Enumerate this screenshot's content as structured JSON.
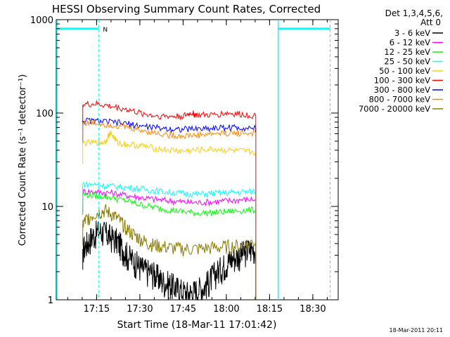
{
  "chart_data": {
    "type": "line",
    "title": "HESSI Observing Summary Count Rates, Corrected",
    "xlabel": "Start Time (18-Mar-11 17:01:42)",
    "ylabel": "Corrected Count Rate (s⁻¹ detector⁻¹)",
    "yscale": "log",
    "ylim": [
      1,
      1000
    ],
    "xlim_minutes": [
      17.0167,
      17.6467
    ],
    "x_ticks": [
      {
        "label": "17:15",
        "value": 17.25
      },
      {
        "label": "17:30",
        "value": 17.5
      },
      {
        "label": "17:45",
        "value": 17.75
      },
      {
        "label": "18:00",
        "value": 18.0
      },
      {
        "label": "18:15",
        "value": 18.25
      },
      {
        "label": "18:30",
        "value": 18.5
      }
    ],
    "y_ticks": [
      {
        "label": "1",
        "value": 1
      },
      {
        "label": "10",
        "value": 10
      },
      {
        "label": "100",
        "value": 100
      },
      {
        "label": "1000",
        "value": 1000
      }
    ],
    "legend": {
      "position": "top-right",
      "header": [
        "Det 1,3,4,5,6,",
        "Att 0"
      ]
    },
    "series": [
      {
        "name": "3 - 6 keV",
        "color": "#000000",
        "x": [
          17.17,
          17.2,
          17.23,
          17.27,
          17.3,
          17.33,
          17.37,
          17.4,
          17.43,
          17.47,
          17.5,
          17.53,
          17.57,
          17.6,
          17.63,
          17.67,
          17.7,
          17.73,
          17.77,
          17.8,
          17.83,
          17.87,
          17.9,
          17.93,
          17.97,
          18.0,
          18.03,
          18.07,
          18.1,
          18.13,
          18.17
        ],
        "y": [
          3.5,
          4.2,
          5,
          5.5,
          5.2,
          4.8,
          4.3,
          3.6,
          3.0,
          2.6,
          2.3,
          2.1,
          2.0,
          1.8,
          1.6,
          1.5,
          1.4,
          1.3,
          1.2,
          1.2,
          1.3,
          1.4,
          1.6,
          1.9,
          2.2,
          2.5,
          2.8,
          3.0,
          3.2,
          3.5,
          3.6
        ]
      },
      {
        "name": "6 - 12 keV",
        "color": "#ff00ff",
        "x": [
          17.17,
          17.25,
          17.33,
          17.42,
          17.5,
          17.58,
          17.67,
          17.75,
          17.83,
          17.92,
          18.0,
          18.08,
          18.17
        ],
        "y": [
          14.5,
          14.3,
          14.0,
          13.2,
          12.5,
          12.0,
          11.5,
          11.2,
          11.0,
          11.2,
          11.5,
          11.8,
          12.0
        ]
      },
      {
        "name": "12 - 25 keV",
        "color": "#00ff00",
        "x": [
          17.17,
          17.25,
          17.33,
          17.42,
          17.5,
          17.58,
          17.67,
          17.75,
          17.83,
          17.92,
          18.0,
          18.08,
          18.17
        ],
        "y": [
          13.5,
          13.0,
          12.5,
          11.5,
          10.5,
          9.8,
          9.2,
          8.8,
          8.5,
          8.6,
          8.8,
          9.0,
          9.2
        ]
      },
      {
        "name": "25 - 50 keV",
        "color": "#00ffff",
        "x": [
          17.17,
          17.25,
          17.33,
          17.42,
          17.5,
          17.58,
          17.67,
          17.75,
          17.83,
          17.92,
          18.0,
          18.08,
          18.17
        ],
        "y": [
          17.5,
          17.0,
          16.5,
          16.0,
          15.5,
          14.8,
          14.2,
          13.8,
          13.5,
          13.8,
          14.0,
          14.2,
          14.5
        ]
      },
      {
        "name": "50 - 100 keV",
        "color": "#ffcc00",
        "x": [
          17.17,
          17.25,
          17.3,
          17.33,
          17.37,
          17.42,
          17.5,
          17.58,
          17.67,
          17.75,
          17.83,
          17.92,
          18.0,
          18.08,
          18.17
        ],
        "y": [
          48,
          48,
          49,
          62,
          48,
          46,
          45,
          42,
          40,
          39,
          40,
          41,
          40,
          39,
          38
        ]
      },
      {
        "name": "100 - 300 keV",
        "color": "#ff0000",
        "x": [
          17.17,
          17.25,
          17.33,
          17.42,
          17.5,
          17.58,
          17.67,
          17.75,
          17.8,
          17.83,
          17.92,
          18.0,
          18.08,
          18.17
        ],
        "y": [
          123,
          125,
          118,
          110,
          100,
          94,
          92,
          93,
          100,
          95,
          95,
          100,
          97,
          94
        ]
      },
      {
        "name": "300 - 800 keV",
        "color": "#0000ff",
        "x": [
          17.17,
          17.25,
          17.33,
          17.42,
          17.5,
          17.58,
          17.67,
          17.75,
          17.83,
          17.92,
          18.0,
          18.08,
          18.17
        ],
        "y": [
          83,
          82,
          80,
          77,
          73,
          70,
          68,
          67,
          68,
          69,
          70,
          70,
          69
        ]
      },
      {
        "name": "800 - 7000 keV",
        "color": "#ff8800",
        "x": [
          17.17,
          17.25,
          17.33,
          17.42,
          17.5,
          17.58,
          17.67,
          17.75,
          17.83,
          17.92,
          18.0,
          18.08,
          18.17
        ],
        "y": [
          79,
          78,
          75,
          71,
          66,
          62,
          58,
          57,
          58,
          60,
          61,
          61,
          61
        ]
      },
      {
        "name": "7000 - 20000 keV",
        "color": "#8b7b00",
        "x": [
          17.17,
          17.2,
          17.25,
          17.3,
          17.35,
          17.4,
          17.45,
          17.5,
          17.55,
          17.6,
          17.67,
          17.75,
          17.83,
          17.92,
          18.0,
          18.08,
          18.17
        ],
        "y": [
          6.5,
          7.5,
          8.5,
          9.0,
          8.0,
          6.5,
          5.2,
          4.5,
          4.0,
          3.8,
          3.6,
          3.5,
          3.5,
          3.6,
          3.7,
          3.8,
          4.2
        ]
      }
    ],
    "annotations": [
      {
        "text": "N",
        "color": "#00ffff",
        "x": 17.27
      }
    ],
    "flags": {
      "color": "#00ffff",
      "bar_level": 800,
      "segments": [
        {
          "x0": 17.017,
          "x1": 17.262
        },
        {
          "x0": 18.3,
          "x1": 18.6
        }
      ],
      "dashed_lines": [
        17.262,
        18.6
      ],
      "solid_lines": [
        17.017,
        18.3
      ]
    }
  },
  "timestamp": "18-Mar-2011 20:11"
}
